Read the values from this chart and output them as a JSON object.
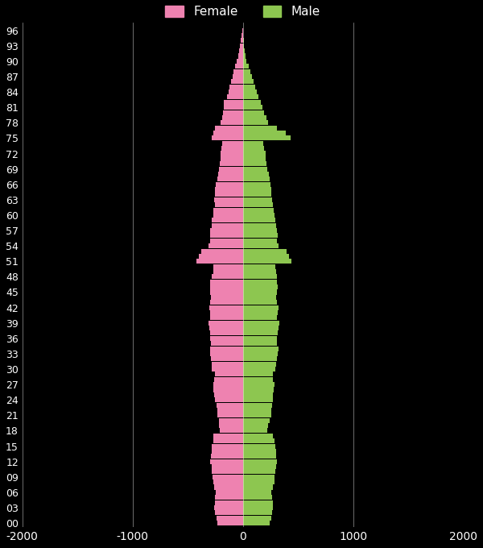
{
  "ages": [
    0,
    1,
    2,
    3,
    4,
    5,
    6,
    7,
    8,
    9,
    10,
    11,
    12,
    13,
    14,
    15,
    16,
    17,
    18,
    19,
    20,
    21,
    22,
    23,
    24,
    25,
    26,
    27,
    28,
    29,
    30,
    31,
    32,
    33,
    34,
    35,
    36,
    37,
    38,
    39,
    40,
    41,
    42,
    43,
    44,
    45,
    46,
    47,
    48,
    49,
    50,
    51,
    52,
    53,
    54,
    55,
    56,
    57,
    58,
    59,
    60,
    61,
    62,
    63,
    64,
    65,
    66,
    67,
    68,
    69,
    70,
    71,
    72,
    73,
    74,
    75,
    76,
    77,
    78,
    79,
    80,
    81,
    82,
    83,
    84,
    85,
    86,
    87,
    88,
    89,
    90,
    91,
    92,
    93,
    94,
    95,
    96
  ],
  "female": [
    230,
    240,
    250,
    260,
    255,
    250,
    245,
    260,
    270,
    275,
    280,
    285,
    295,
    290,
    285,
    280,
    270,
    265,
    210,
    215,
    220,
    230,
    235,
    240,
    250,
    260,
    265,
    270,
    260,
    255,
    280,
    285,
    290,
    295,
    300,
    290,
    295,
    300,
    305,
    310,
    295,
    300,
    305,
    295,
    290,
    295,
    300,
    295,
    280,
    270,
    265,
    420,
    400,
    380,
    310,
    295,
    300,
    295,
    285,
    280,
    270,
    265,
    255,
    260,
    255,
    250,
    245,
    235,
    225,
    220,
    210,
    205,
    200,
    195,
    190,
    280,
    270,
    250,
    200,
    190,
    180,
    175,
    170,
    145,
    130,
    120,
    110,
    95,
    85,
    70,
    55,
    45,
    35,
    25,
    18,
    12,
    8
  ],
  "male": [
    245,
    255,
    265,
    275,
    270,
    265,
    260,
    275,
    285,
    290,
    295,
    300,
    310,
    305,
    300,
    295,
    285,
    275,
    225,
    230,
    240,
    255,
    260,
    265,
    270,
    275,
    280,
    285,
    275,
    270,
    295,
    300,
    310,
    315,
    325,
    310,
    310,
    315,
    325,
    330,
    310,
    315,
    320,
    310,
    305,
    310,
    315,
    310,
    310,
    300,
    295,
    440,
    420,
    400,
    325,
    310,
    315,
    310,
    305,
    295,
    285,
    280,
    270,
    265,
    260,
    255,
    250,
    245,
    235,
    225,
    215,
    210,
    205,
    195,
    185,
    430,
    390,
    310,
    230,
    215,
    195,
    175,
    165,
    140,
    125,
    110,
    100,
    80,
    65,
    50,
    35,
    25,
    18,
    12,
    8,
    5,
    3
  ],
  "female_color": "#ee82b0",
  "male_color": "#8dc650",
  "bg_color": "#000000",
  "text_color": "#ffffff",
  "grid_color": "#ffffff",
  "xlim": [
    -2000,
    2000
  ],
  "xlabel_ticks": [
    -2000,
    -1000,
    0,
    1000,
    2000
  ],
  "bar_height": 0.95,
  "ytick_ages": [
    0,
    3,
    6,
    9,
    12,
    15,
    18,
    21,
    24,
    27,
    30,
    33,
    36,
    39,
    42,
    45,
    48,
    51,
    54,
    57,
    60,
    63,
    66,
    69,
    72,
    75,
    78,
    81,
    84,
    87,
    90,
    93,
    96
  ],
  "female_label": "Female",
  "male_label": "Male"
}
